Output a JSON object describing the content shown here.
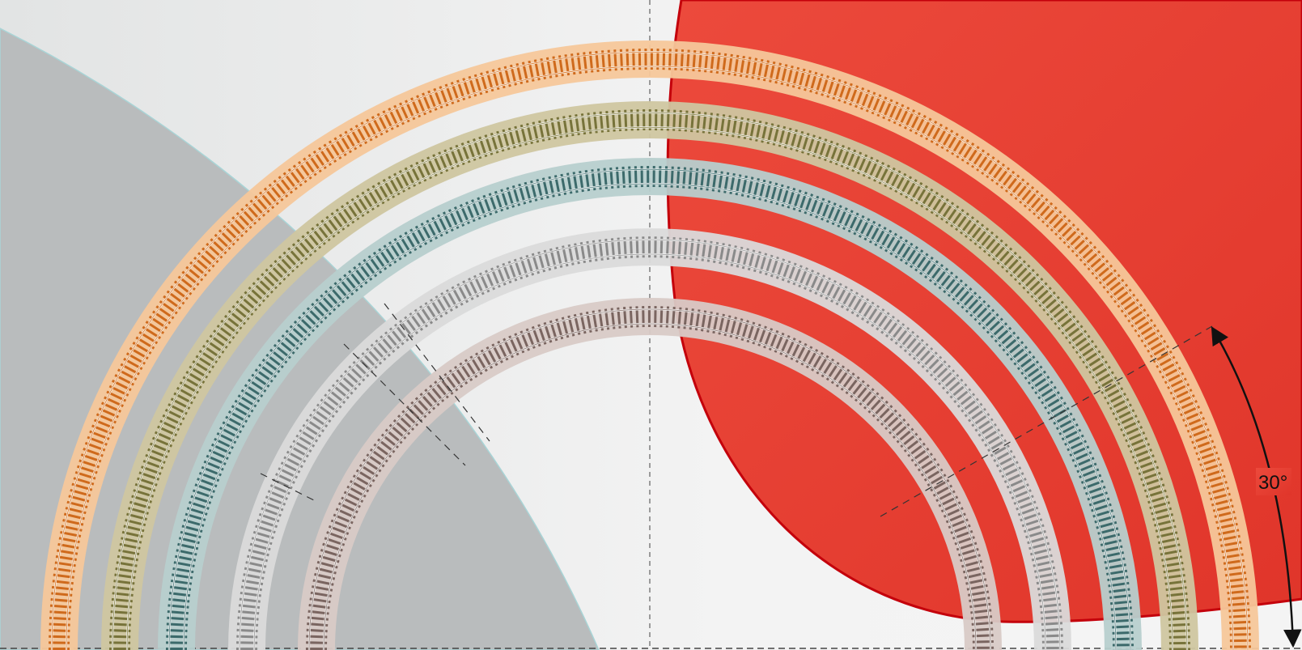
{
  "diagram": {
    "angle_label": "30°",
    "colors": {
      "background_light": "#f3f3f3",
      "grey_sector": "#b8bbbc",
      "red_shape": "#e33a2e",
      "red_edge": "#c4000b",
      "dimension_line": "#111111",
      "guide_dash": "#444444"
    },
    "tracks": [
      {
        "name": "track-orange",
        "fill": "#f6c79a",
        "rail": "#e07a26",
        "tie": "#cf6a1c"
      },
      {
        "name": "track-olive",
        "fill": "#cfc6a0",
        "rail": "#8c8646",
        "tie": "#77733a"
      },
      {
        "name": "track-teal",
        "fill": "#b7cfcd",
        "rail": "#4f7f80",
        "tie": "#3c6a6b"
      },
      {
        "name": "track-grey",
        "fill": "#dadada",
        "rail": "#9a9a9a",
        "tie": "#8a8a8a"
      },
      {
        "name": "track-mauve",
        "fill": "#d8cac6",
        "rail": "#8e7872",
        "tie": "#7a6560"
      }
    ]
  }
}
